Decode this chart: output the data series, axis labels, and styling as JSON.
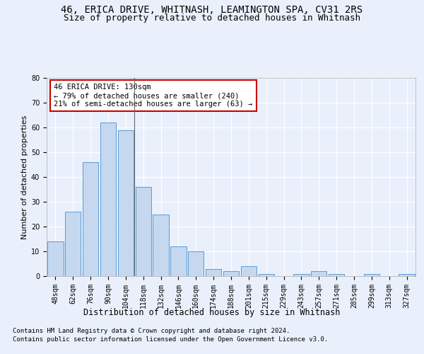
{
  "title1": "46, ERICA DRIVE, WHITNASH, LEAMINGTON SPA, CV31 2RS",
  "title2": "Size of property relative to detached houses in Whitnash",
  "xlabel": "Distribution of detached houses by size in Whitnash",
  "ylabel": "Number of detached properties",
  "categories": [
    "48sqm",
    "62sqm",
    "76sqm",
    "90sqm",
    "104sqm",
    "118sqm",
    "132sqm",
    "146sqm",
    "160sqm",
    "174sqm",
    "188sqm",
    "201sqm",
    "215sqm",
    "229sqm",
    "243sqm",
    "257sqm",
    "271sqm",
    "285sqm",
    "299sqm",
    "313sqm",
    "327sqm"
  ],
  "values": [
    14,
    26,
    46,
    62,
    59,
    36,
    25,
    12,
    10,
    3,
    2,
    4,
    1,
    0,
    1,
    2,
    1,
    0,
    1,
    0,
    1
  ],
  "bar_color": "#c5d8f0",
  "bar_edge_color": "#5b9bd5",
  "annotation_box_text": "46 ERICA DRIVE: 130sqm\n← 79% of detached houses are smaller (240)\n21% of semi-detached houses are larger (63) →",
  "annotation_box_color": "#ffffff",
  "annotation_box_edge_color": "#cc0000",
  "ylim": [
    0,
    80
  ],
  "yticks": [
    0,
    10,
    20,
    30,
    40,
    50,
    60,
    70,
    80
  ],
  "bg_color": "#eaf0fb",
  "plot_bg_color": "#eaf0fb",
  "grid_color": "#ffffff",
  "footnote1": "Contains HM Land Registry data © Crown copyright and database right 2024.",
  "footnote2": "Contains public sector information licensed under the Open Government Licence v3.0.",
  "title1_fontsize": 10,
  "title2_fontsize": 9,
  "xlabel_fontsize": 8.5,
  "ylabel_fontsize": 8,
  "tick_fontsize": 7,
  "annotation_fontsize": 7.5,
  "footnote_fontsize": 6.5,
  "vline_x": 4.5,
  "vline_color": "#666666"
}
